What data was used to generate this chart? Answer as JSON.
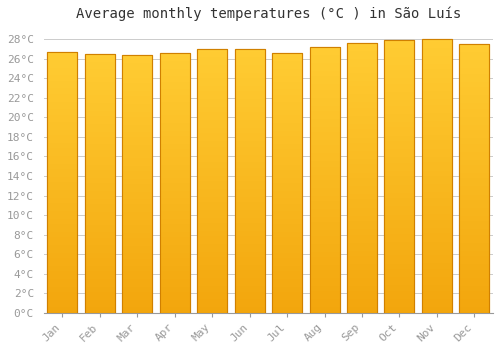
{
  "title": "Average monthly temperatures (°C ) in São Luís",
  "months": [
    "Jan",
    "Feb",
    "Mar",
    "Apr",
    "May",
    "Jun",
    "Jul",
    "Aug",
    "Sep",
    "Oct",
    "Nov",
    "Dec"
  ],
  "temperatures": [
    26.7,
    26.5,
    26.4,
    26.6,
    27.0,
    27.0,
    26.6,
    27.2,
    27.6,
    27.9,
    28.0,
    27.5
  ],
  "bar_color": "#F5A800",
  "bar_edge_color": "#D08000",
  "background_color": "#FFFFFF",
  "grid_color": "#CCCCCC",
  "ylim": [
    0,
    29
  ],
  "ytick_max": 28,
  "ytick_step": 2,
  "title_fontsize": 10,
  "tick_fontsize": 8,
  "tick_color": "#999999",
  "title_color": "#333333"
}
